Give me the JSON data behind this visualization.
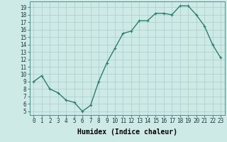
{
  "x": [
    0,
    1,
    2,
    3,
    4,
    5,
    6,
    7,
    8,
    9,
    10,
    11,
    12,
    13,
    14,
    15,
    16,
    17,
    18,
    19,
    20,
    21,
    22,
    23
  ],
  "y": [
    9.0,
    9.8,
    8.0,
    7.5,
    6.5,
    6.2,
    5.0,
    5.8,
    9.0,
    11.5,
    13.5,
    15.5,
    15.8,
    17.2,
    17.2,
    18.2,
    18.2,
    18.0,
    19.2,
    19.2,
    18.0,
    16.5,
    14.0,
    12.2
  ],
  "line_color": "#2e7d6e",
  "marker": "+",
  "marker_size": 3,
  "line_width": 1.0,
  "bg_color": "#ceeae7",
  "grid_color": "#aaccca",
  "xlabel": "Humidex (Indice chaleur)",
  "xlabel_fontsize": 7,
  "ylabel_ticks": [
    5,
    6,
    7,
    8,
    9,
    10,
    11,
    12,
    13,
    14,
    15,
    16,
    17,
    18,
    19
  ],
  "ylim": [
    4.5,
    19.8
  ],
  "xlim": [
    -0.5,
    23.5
  ],
  "tick_fontsize": 5.5,
  "xtick_labels": [
    "0",
    "1",
    "2",
    "3",
    "4",
    "5",
    "6",
    "7",
    "8",
    "9",
    "10",
    "11",
    "12",
    "13",
    "14",
    "15",
    "16",
    "17",
    "18",
    "19",
    "20",
    "21",
    "22",
    "23"
  ]
}
